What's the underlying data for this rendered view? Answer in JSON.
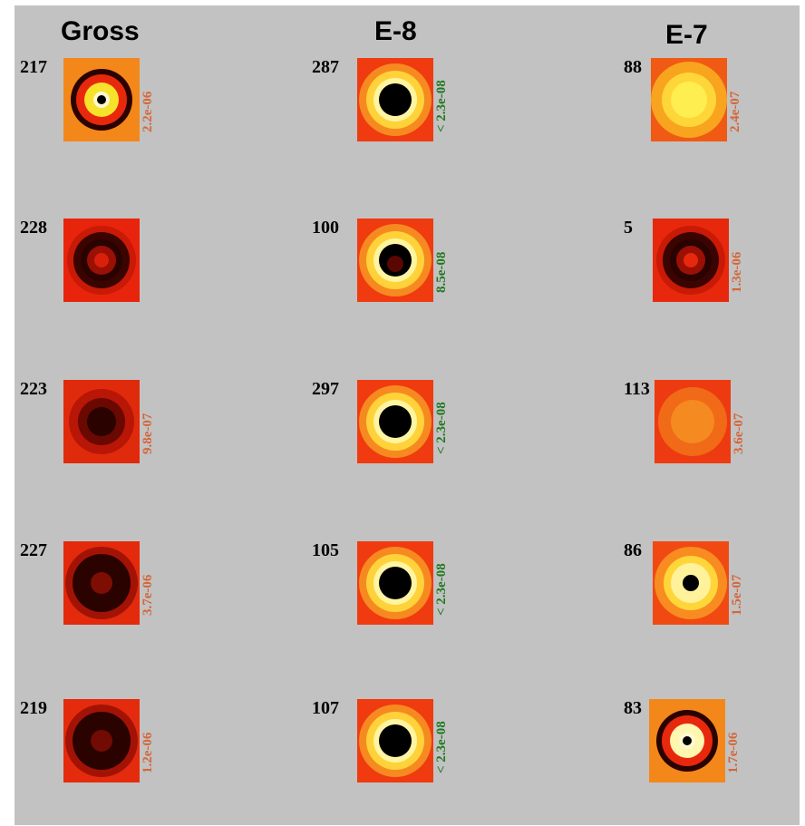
{
  "columns": [
    {
      "title": "Gross",
      "rows": [
        {
          "id": "217",
          "pvalue": "2.2e-06",
          "pcolor": "#d4663a",
          "pattern": "ring-tight",
          "bg": "#f04a10",
          "fill": "#f6e22a"
        },
        {
          "id": "228",
          "pvalue": "",
          "pcolor": "#d4663a",
          "pattern": "dark-ring",
          "bg": "#e8240c",
          "fill": "#d9200b"
        },
        {
          "id": "223",
          "pvalue": "9.8e-07",
          "pcolor": "#d4663a",
          "pattern": "dark-blob",
          "bg": "#e02a0c",
          "fill": "#c81a06"
        },
        {
          "id": "227",
          "pvalue": "3.7e-06",
          "pcolor": "#d4663a",
          "pattern": "dark-big",
          "bg": "#e32a0c",
          "fill": "#b81606"
        },
        {
          "id": "219",
          "pvalue": "1.2e-06",
          "pcolor": "#d4663a",
          "pattern": "dark-big",
          "bg": "#e52b0d",
          "fill": "#a21305"
        }
      ]
    },
    {
      "title": "E-8",
      "rows": [
        {
          "id": "287",
          "pvalue": "< 2.3e-08",
          "pcolor": "#1f7a1f",
          "pattern": "black-core",
          "bg": "#f03a10",
          "fill": "#fff4a0"
        },
        {
          "id": "100",
          "pvalue": "8.5e-08",
          "pcolor": "#1f7a1f",
          "pattern": "black-core-red",
          "bg": "#f03a10",
          "fill": "#fff4a0"
        },
        {
          "id": "297",
          "pvalue": "< 2.3e-08",
          "pcolor": "#1f7a1f",
          "pattern": "black-core",
          "bg": "#f03a10",
          "fill": "#fff4a0"
        },
        {
          "id": "105",
          "pvalue": "< 2.3e-08",
          "pcolor": "#1f7a1f",
          "pattern": "black-core",
          "bg": "#f03a10",
          "fill": "#fff4a0"
        },
        {
          "id": "107",
          "pvalue": "< 2.3e-08",
          "pcolor": "#1f7a1f",
          "pattern": "black-core",
          "bg": "#f03a10",
          "fill": "#fff4a0"
        }
      ]
    },
    {
      "title": "E-7",
      "rows": [
        {
          "id": "88",
          "pvalue": "2.4e-07",
          "pcolor": "#d4663a",
          "pattern": "yellow-glow",
          "bg": "#f05a14",
          "fill": "#ffee50"
        },
        {
          "id": "5",
          "pvalue": "1.3e-06",
          "pcolor": "#d4663a",
          "pattern": "dark-ring",
          "bg": "#e8280c",
          "fill": "#e8280c"
        },
        {
          "id": "113",
          "pvalue": "3.6e-07",
          "pcolor": "#d4663a",
          "pattern": "orange-flat",
          "bg": "#ee3a10",
          "fill": "#f48a20"
        },
        {
          "id": "86",
          "pvalue": "1.5e-07",
          "pcolor": "#d4663a",
          "pattern": "small-core",
          "bg": "#f04a12",
          "fill": "#fff29a"
        },
        {
          "id": "83",
          "pvalue": "1.7e-06",
          "pcolor": "#d4663a",
          "pattern": "ring-tight",
          "bg": "#f04a10",
          "fill": "#fff6b0"
        }
      ]
    }
  ]
}
